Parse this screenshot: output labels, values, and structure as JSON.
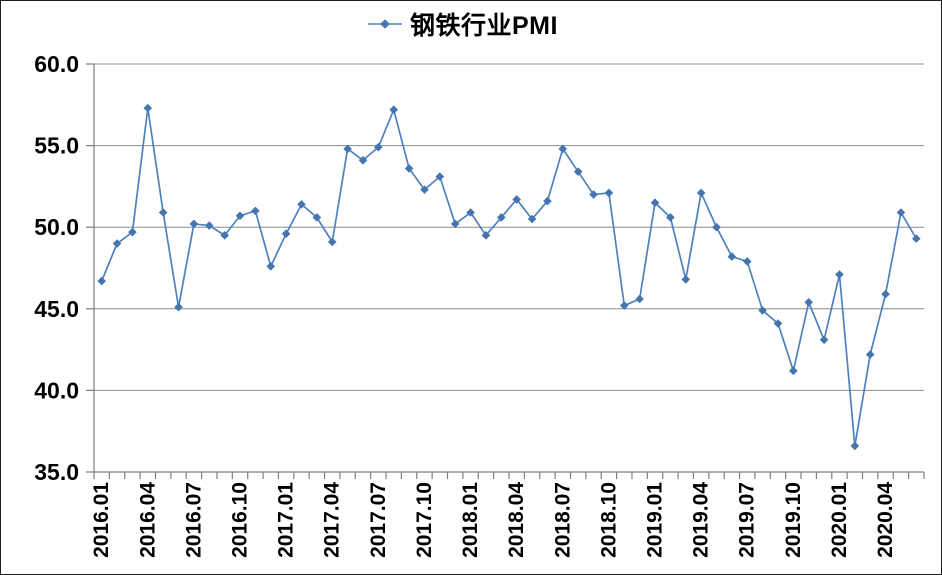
{
  "chart_data": {
    "type": "line",
    "legend": "钢铁行业PMI",
    "legend_position": "top",
    "x": [
      "2016.01",
      "2016.02",
      "2016.03",
      "2016.04",
      "2016.05",
      "2016.06",
      "2016.07",
      "2016.08",
      "2016.09",
      "2016.10",
      "2016.11",
      "2016.12",
      "2017.01",
      "2017.02",
      "2017.03",
      "2017.04",
      "2017.05",
      "2017.06",
      "2017.07",
      "2017.08",
      "2017.09",
      "2017.10",
      "2017.11",
      "2017.12",
      "2018.01",
      "2018.02",
      "2018.03",
      "2018.04",
      "2018.05",
      "2018.06",
      "2018.07",
      "2018.08",
      "2018.09",
      "2018.10",
      "2018.11",
      "2018.12",
      "2019.01",
      "2019.02",
      "2019.03",
      "2019.04",
      "2019.05",
      "2019.06",
      "2019.07",
      "2019.08",
      "2019.09",
      "2019.10",
      "2019.11",
      "2019.12",
      "2020.01",
      "2020.02",
      "2020.03",
      "2020.04",
      "2020.05",
      "2020.06"
    ],
    "values": [
      46.7,
      49.0,
      49.7,
      57.3,
      50.9,
      45.1,
      50.2,
      50.1,
      49.5,
      50.7,
      51.0,
      47.6,
      49.6,
      51.4,
      50.6,
      49.1,
      54.8,
      54.1,
      54.9,
      57.2,
      53.6,
      52.3,
      53.1,
      50.2,
      50.9,
      49.5,
      50.6,
      51.7,
      50.5,
      51.6,
      54.8,
      53.4,
      52.0,
      52.1,
      45.2,
      45.6,
      51.5,
      50.6,
      46.8,
      52.1,
      50.0,
      48.2,
      47.9,
      44.9,
      44.1,
      41.2,
      45.4,
      43.1,
      47.1,
      36.6,
      42.2,
      45.9,
      50.9,
      49.3
    ],
    "x_tick_label_every": 3,
    "x_tick_labels_shown": [
      "2016.01",
      "2016.04",
      "2016.07",
      "2016.10",
      "2017.01",
      "2017.04",
      "2017.07",
      "2017.10",
      "2018.01",
      "2018.04",
      "2018.07",
      "2018.10",
      "2019.01",
      "2019.04",
      "2019.07",
      "2019.10",
      "2020.01",
      "2020.04"
    ],
    "ylim": [
      35,
      60
    ],
    "y_ticks": [
      35,
      40,
      45,
      50,
      55,
      60
    ],
    "y_tick_labels": [
      "35.0",
      "40.0",
      "45.0",
      "50.0",
      "55.0",
      "60.0"
    ],
    "grid": true,
    "marker": "diamond",
    "line_color": "#4F81BD",
    "marker_color": "#4575AE",
    "grid_color": "#8C8C8C",
    "axis_color": "#7F7F7F",
    "text_color": "#000000"
  }
}
